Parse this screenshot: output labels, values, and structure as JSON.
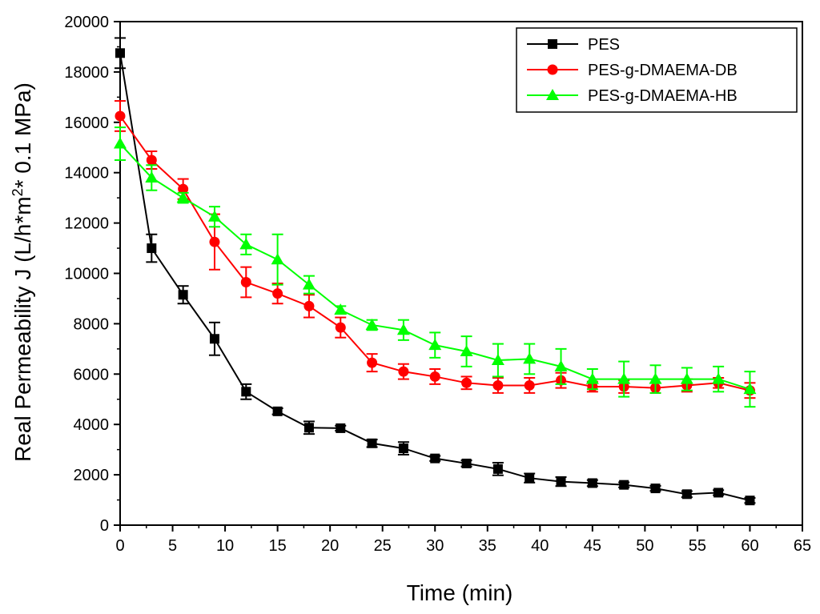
{
  "chart_data": {
    "type": "line",
    "title": "",
    "xlabel": "Time (min)",
    "ylabel": {
      "prefix": "Real Permeability J (L/h*m",
      "sup": "2",
      "suffix": "* 0.1 MPa)"
    },
    "xlim": [
      0,
      65
    ],
    "ylim": [
      0,
      20000
    ],
    "xticks": [
      "0",
      "5",
      "10",
      "15",
      "20",
      "25",
      "30",
      "35",
      "40",
      "45",
      "50",
      "55",
      "60",
      "65"
    ],
    "yticks": [
      "0",
      "2000",
      "4000",
      "6000",
      "8000",
      "10000",
      "12000",
      "14000",
      "16000",
      "18000",
      "20000"
    ],
    "legend_position": "top-right",
    "x": [
      0,
      3,
      6,
      9,
      12,
      15,
      18,
      21,
      24,
      27,
      30,
      33,
      36,
      39,
      42,
      45,
      48,
      51,
      54,
      57,
      60
    ],
    "series": [
      {
        "name": "PES",
        "color": "#000000",
        "marker": "square",
        "values": [
          18750,
          11000,
          9150,
          7400,
          5300,
          4520,
          3870,
          3850,
          3250,
          3050,
          2650,
          2450,
          2230,
          1870,
          1730,
          1670,
          1600,
          1460,
          1230,
          1290,
          980
        ],
        "errors": [
          600,
          550,
          350,
          650,
          300,
          120,
          250,
          100,
          150,
          250,
          100,
          120,
          250,
          180,
          180,
          120,
          100,
          100,
          120,
          100,
          100
        ]
      },
      {
        "name": "PES-g-DMAEMA-DB",
        "color": "#ff0000",
        "marker": "circle",
        "values": [
          16250,
          14500,
          13350,
          11250,
          9650,
          9200,
          8700,
          7850,
          6450,
          6100,
          5900,
          5650,
          5550,
          5550,
          5750,
          5500,
          5500,
          5450,
          5550,
          5650,
          5350
        ],
        "errors": [
          600,
          350,
          400,
          1100,
          600,
          400,
          450,
          400,
          350,
          300,
          300,
          250,
          300,
          300,
          300,
          200,
          250,
          200,
          250,
          200,
          300
        ]
      },
      {
        "name": "PES-g-DMAEMA-HB",
        "color": "#00ff00",
        "marker": "triangle",
        "values": [
          15150,
          13800,
          13000,
          12250,
          11150,
          10550,
          9550,
          8550,
          7950,
          7750,
          7150,
          6900,
          6550,
          6600,
          6300,
          5800,
          5800,
          5800,
          5800,
          5800,
          5400
        ],
        "errors": [
          650,
          500,
          200,
          400,
          400,
          1000,
          350,
          150,
          200,
          400,
          500,
          600,
          650,
          600,
          700,
          400,
          700,
          550,
          450,
          500,
          700
        ]
      }
    ]
  }
}
